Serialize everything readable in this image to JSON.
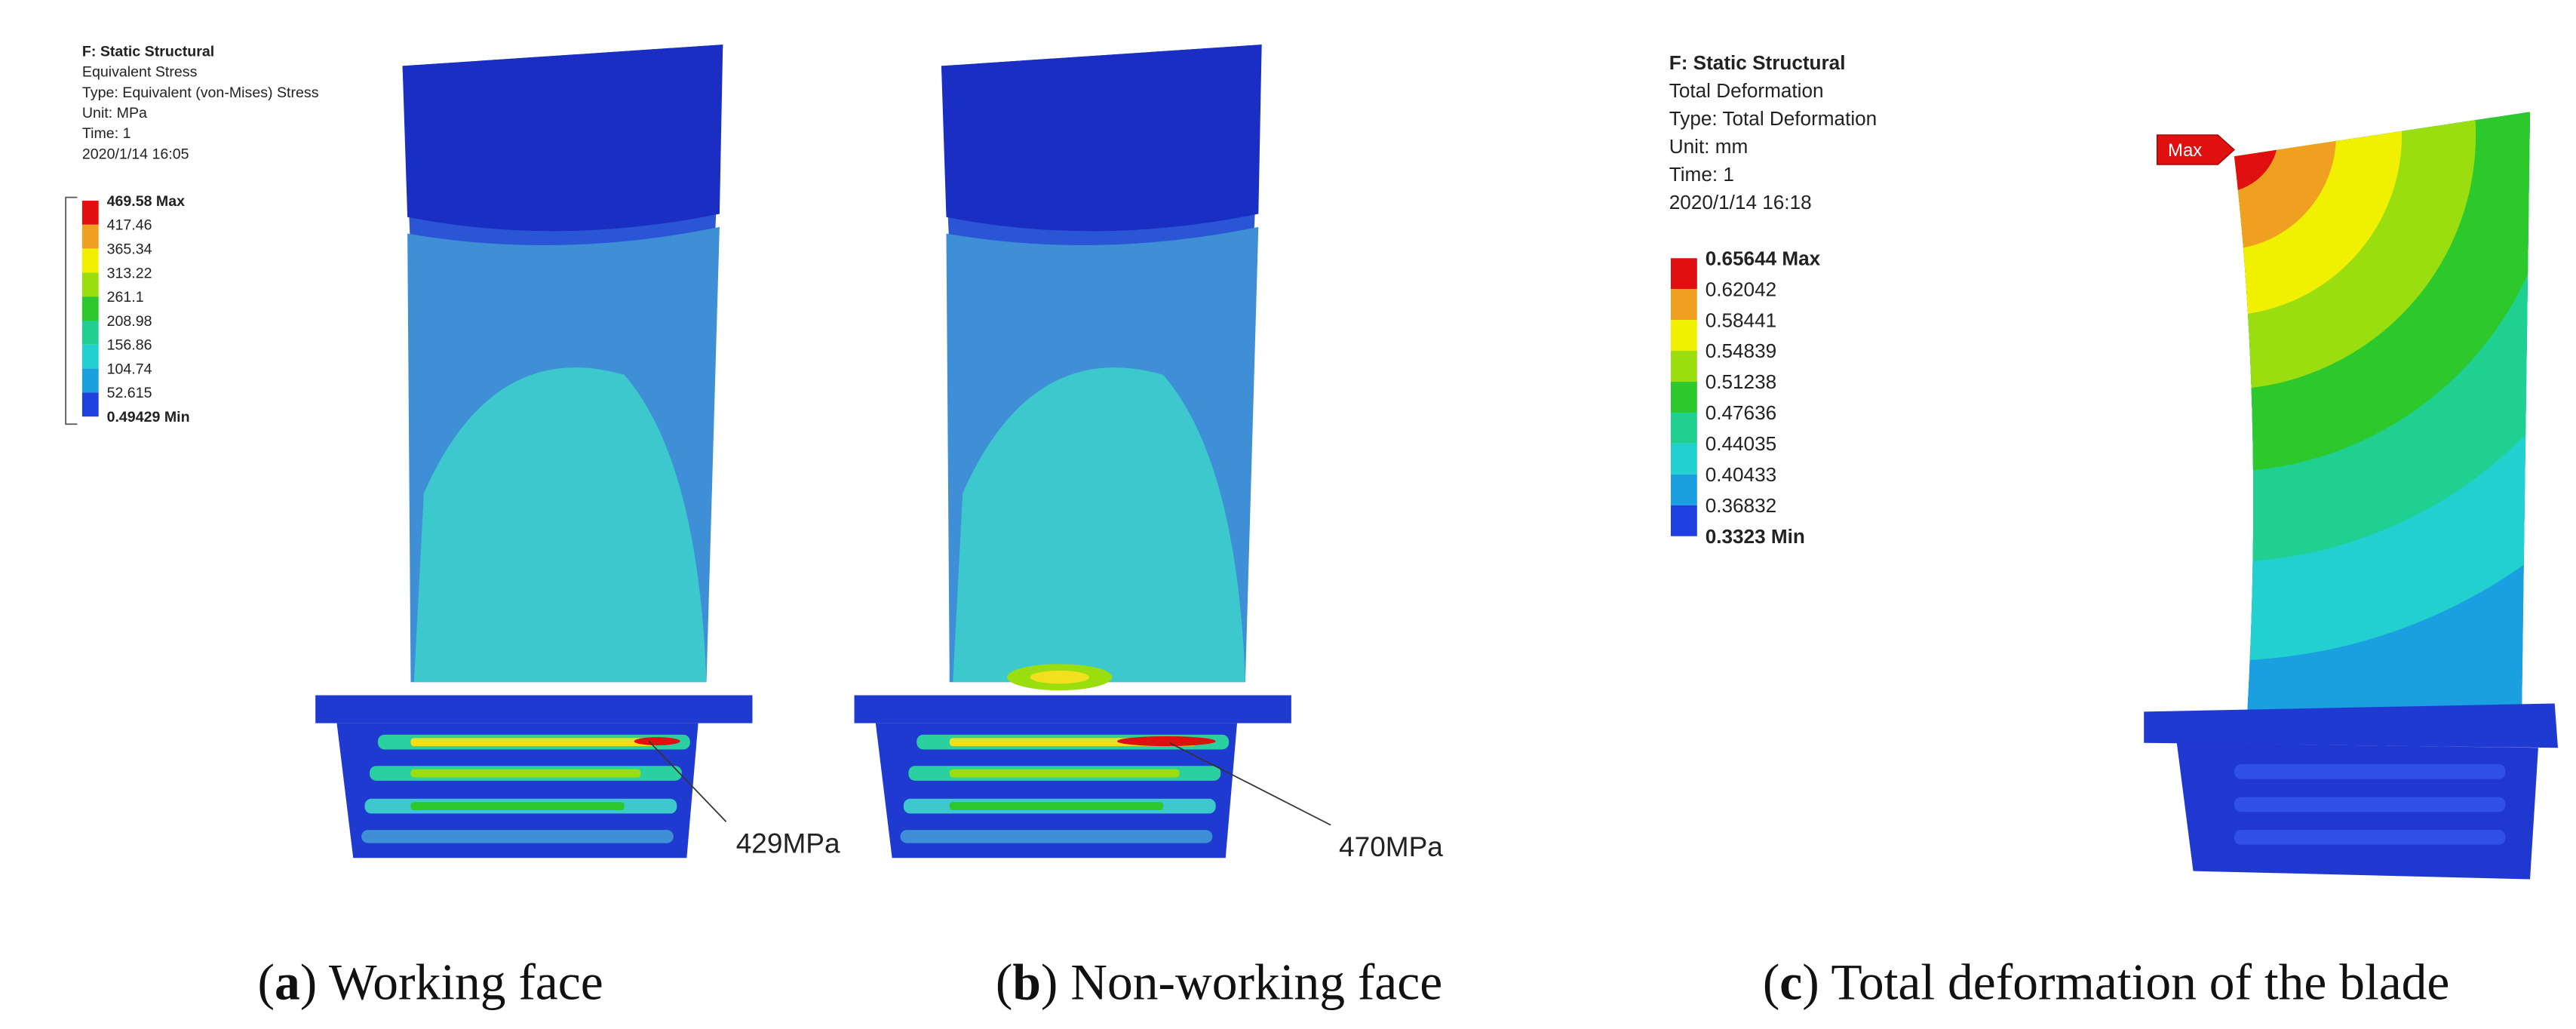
{
  "panels": [
    {
      "header": [
        "F: Static Structural",
        "Equivalent Stress",
        "Type: Equivalent (von-Mises) Stress",
        "Unit: MPa",
        "Time: 1",
        "2020/1/14 16:05"
      ],
      "legend": [
        "469.58 Max",
        "417.46",
        "365.34",
        "313.22",
        "261.1",
        "208.98",
        "156.86",
        "104.74",
        "52.615",
        "0.49429 Min"
      ],
      "annotation": "429MPa",
      "caption": [
        "(",
        "a",
        ") Working face"
      ]
    },
    {
      "annotation": "470MPa",
      "caption": [
        "(",
        "b",
        ") Non-working face"
      ]
    },
    {
      "header": [
        "F: Static Structural",
        "Total Deformation",
        "Type: Total Deformation",
        "Unit: mm",
        "Time: 1",
        "2020/1/14 16:18"
      ],
      "legend": [
        "0.65644 Max",
        "0.62042",
        "0.58441",
        "0.54839",
        "0.51238",
        "0.47636",
        "0.44035",
        "0.40433",
        "0.36832",
        "0.3323 Min"
      ],
      "probe": "Max",
      "caption": [
        "(",
        "c",
        ") Total deformation of the blade"
      ]
    }
  ]
}
